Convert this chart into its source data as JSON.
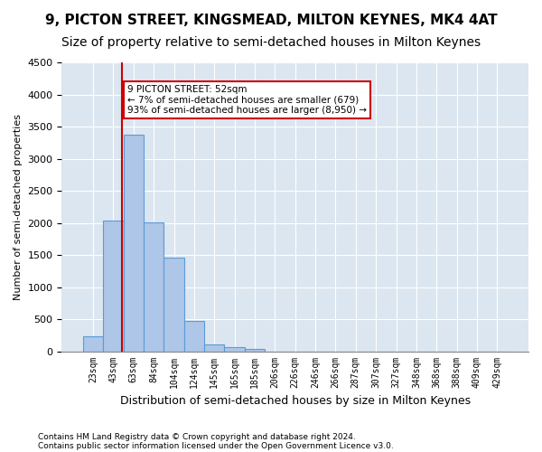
{
  "title1": "9, PICTON STREET, KINGSMEAD, MILTON KEYNES, MK4 4AT",
  "title2": "Size of property relative to semi-detached houses in Milton Keynes",
  "xlabel": "Distribution of semi-detached houses by size in Milton Keynes",
  "ylabel": "Number of semi-detached properties",
  "footnote1": "Contains HM Land Registry data © Crown copyright and database right 2024.",
  "footnote2": "Contains public sector information licensed under the Open Government Licence v3.0.",
  "bin_labels": [
    "23sqm",
    "43sqm",
    "63sqm",
    "84sqm",
    "104sqm",
    "124sqm",
    "145sqm",
    "165sqm",
    "185sqm",
    "206sqm",
    "226sqm",
    "246sqm",
    "266sqm",
    "287sqm",
    "307sqm",
    "327sqm",
    "348sqm",
    "368sqm",
    "388sqm",
    "409sqm",
    "429sqm"
  ],
  "bar_values": [
    230,
    2030,
    3380,
    2010,
    1460,
    470,
    100,
    60,
    40,
    0,
    0,
    0,
    0,
    0,
    0,
    0,
    0,
    0,
    0,
    0,
    0
  ],
  "bar_color": "#aec6e8",
  "bar_edge_color": "#5b9bd5",
  "vline_x_index": 1.45,
  "vline_color": "#cc0000",
  "annotation_text": "9 PICTON STREET: 52sqm\n← 7% of semi-detached houses are smaller (679)\n93% of semi-detached houses are larger (8,950) →",
  "annotation_box_color": "#ffffff",
  "annotation_box_edge": "#cc0000",
  "ylim": [
    0,
    4500
  ],
  "yticks": [
    0,
    500,
    1000,
    1500,
    2000,
    2500,
    3000,
    3500,
    4000,
    4500
  ],
  "plot_bg_color": "#dce6f1",
  "title1_fontsize": 11,
  "title2_fontsize": 10,
  "grid_color": "#ffffff"
}
